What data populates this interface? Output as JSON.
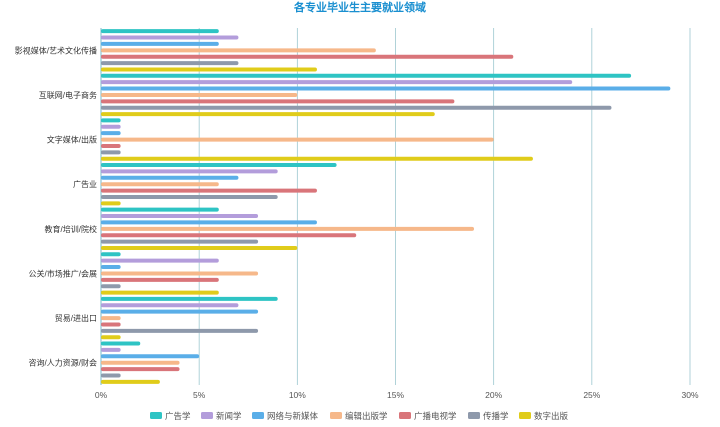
{
  "chart_data": {
    "type": "bar",
    "orientation": "horizontal",
    "title": "各专业毕业生主要就业领域",
    "categories": [
      "影视媒体/艺术文化传播",
      "互联网/电子商务",
      "文字媒体/出版",
      "广告业",
      "教育/培训/院校",
      "公关/市场推广/会展",
      "贸易/进出口",
      "咨询/人力资源/财会"
    ],
    "series": [
      {
        "name": "广告学",
        "color": "#2ec4c4",
        "values": [
          6,
          27,
          1,
          12,
          6,
          1,
          9,
          2
        ]
      },
      {
        "name": "新闻学",
        "color": "#b39ddb",
        "values": [
          7,
          24,
          1,
          9,
          8,
          6,
          7,
          1
        ]
      },
      {
        "name": "网络与新媒体",
        "color": "#5aaee8",
        "values": [
          6,
          29,
          1,
          7,
          11,
          1,
          8,
          5
        ]
      },
      {
        "name": "编辑出版学",
        "color": "#f6b88a",
        "values": [
          14,
          10,
          20,
          6,
          19,
          8,
          1,
          4
        ]
      },
      {
        "name": "广播电视学",
        "color": "#d9757a",
        "values": [
          21,
          18,
          1,
          11,
          13,
          6,
          1,
          4
        ]
      },
      {
        "name": "传播学",
        "color": "#8e99ab",
        "values": [
          7,
          26,
          1,
          9,
          8,
          1,
          8,
          1
        ]
      },
      {
        "name": "数字出版",
        "color": "#e0cc1a",
        "values": [
          11,
          17,
          22,
          1,
          10,
          6,
          1,
          3
        ]
      }
    ],
    "xlim": [
      0,
      30
    ],
    "xticks": [
      "0%",
      "5%",
      "10%",
      "15%",
      "20%",
      "25%",
      "30%"
    ],
    "unit": "%",
    "grid": true,
    "legend_position": "bottom"
  }
}
